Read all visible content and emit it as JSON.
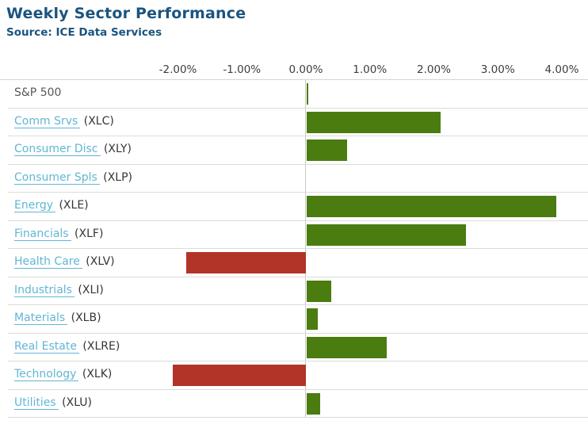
{
  "header": {
    "title": "Weekly Sector Performance",
    "source": "Source: ICE Data Services"
  },
  "chart_data": {
    "type": "bar",
    "orientation": "horizontal",
    "title": "Weekly Sector Performance",
    "subtitle": "Source: ICE Data Services",
    "xlabel": "",
    "ylabel": "",
    "x_axis": {
      "tick_values": [
        -2,
        -1,
        0,
        1,
        2,
        3,
        4
      ],
      "tick_labels": [
        "-2.00%",
        "-1.00%",
        "0.00%",
        "1.00%",
        "2.00%",
        "3.00%",
        "4.00%"
      ],
      "range": [
        -2.75,
        4.4
      ],
      "unit": "percent"
    },
    "grid": "horizontal-row-separators",
    "legend": "none",
    "rows": [
      {
        "label": "S&P 500",
        "ticker": "",
        "link": false,
        "value": 0.03
      },
      {
        "label": "Comm Srvs",
        "ticker": "(XLC)",
        "link": true,
        "value": 2.09
      },
      {
        "label": "Consumer Disc",
        "ticker": "(XLY)",
        "link": true,
        "value": 0.63
      },
      {
        "label": "Consumer Spls",
        "ticker": "(XLP)",
        "link": true,
        "value": 0.0
      },
      {
        "label": "Energy",
        "ticker": "(XLE)",
        "link": true,
        "value": 3.9
      },
      {
        "label": "Financials",
        "ticker": "(XLF)",
        "link": true,
        "value": 2.49
      },
      {
        "label": "Health Care",
        "ticker": "(XLV)",
        "link": true,
        "value": -1.87
      },
      {
        "label": "Industrials",
        "ticker": "(XLI)",
        "link": true,
        "value": 0.38
      },
      {
        "label": "Materials",
        "ticker": "(XLB)",
        "link": true,
        "value": 0.17
      },
      {
        "label": "Real Estate",
        "ticker": "(XLRE)",
        "link": true,
        "value": 1.25
      },
      {
        "label": "Technology",
        "ticker": "(XLK)",
        "link": true,
        "value": -2.08
      },
      {
        "label": "Utilities",
        "ticker": "(XLU)",
        "link": true,
        "value": 0.21
      }
    ],
    "colors": {
      "positive_bar": "#4a7c10",
      "negative_bar": "#b23327",
      "link_text": "#61b6d4",
      "title_text": "#1a5480",
      "ticker_text": "#353535",
      "tick_text": "#3d3d3d",
      "separator": "#dcdcd6",
      "zero_line": "#c9c9bd"
    }
  }
}
